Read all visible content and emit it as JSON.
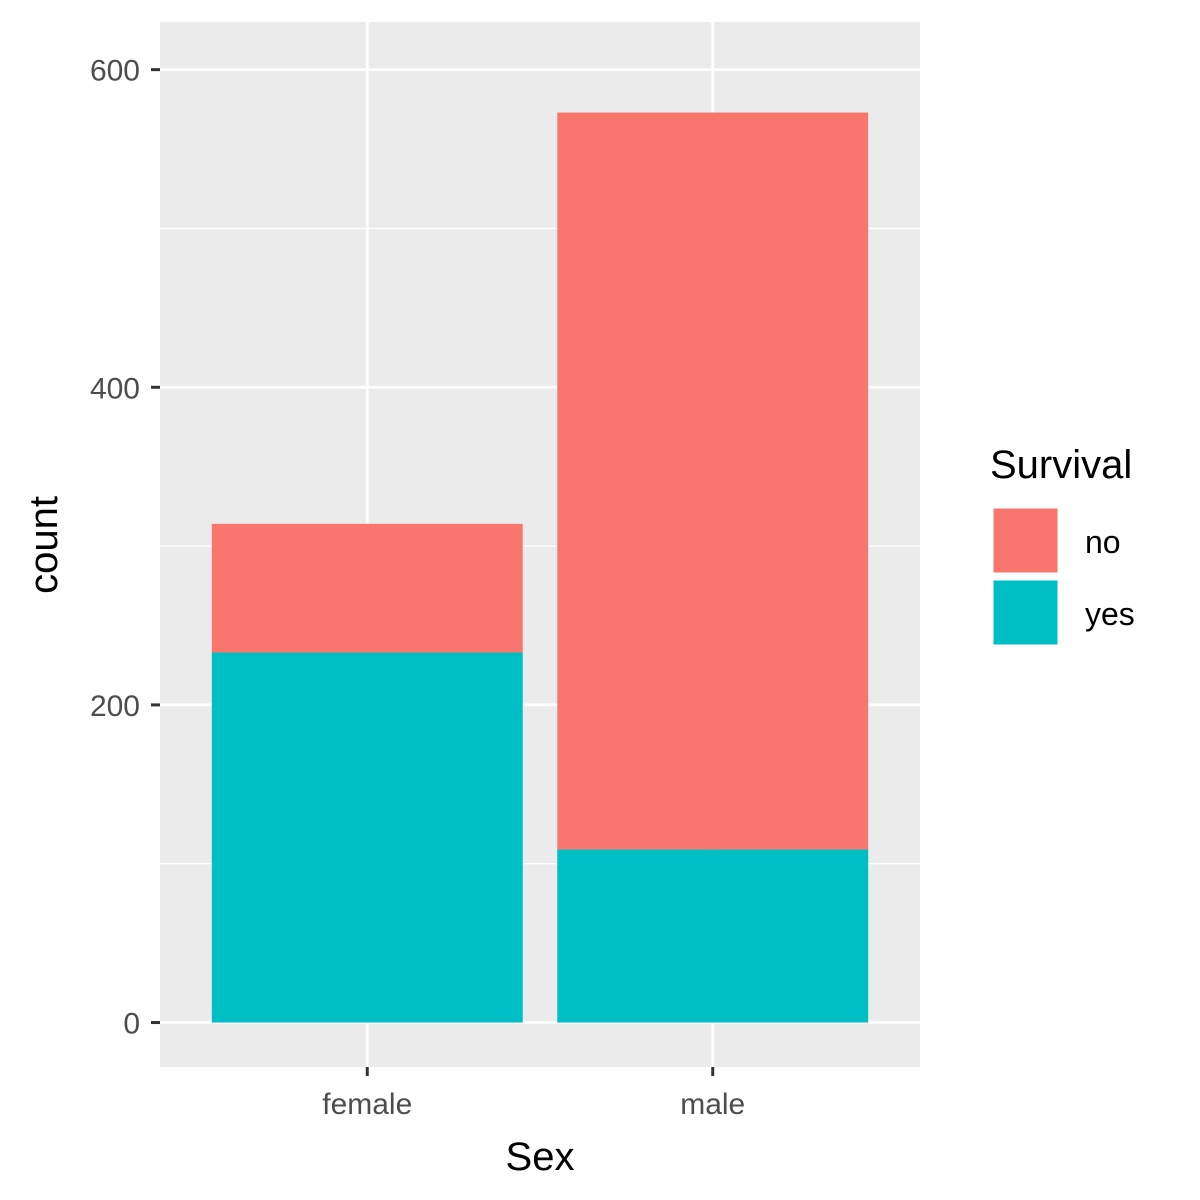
{
  "chart_data": {
    "type": "bar",
    "stacked": true,
    "categories": [
      "female",
      "male"
    ],
    "series": [
      {
        "name": "yes",
        "values": [
          233,
          109
        ],
        "color": "#00BFC4"
      },
      {
        "name": "no",
        "values": [
          81,
          464
        ],
        "color": "#F8766D"
      }
    ],
    "xlabel": "Sex",
    "ylabel": "count",
    "ylim": [
      -28,
      630
    ],
    "yticks": [
      0,
      200,
      400,
      600
    ],
    "y_minor_gridlines": [
      100,
      300,
      500
    ],
    "grid": true,
    "panel_background": "#EBEBEB",
    "gridline_color": "#FFFFFF",
    "legend": {
      "title": "Survival",
      "placement": "right",
      "entries": [
        {
          "label": "no",
          "color": "#F8766D"
        },
        {
          "label": "yes",
          "color": "#00BFC4"
        }
      ]
    }
  }
}
